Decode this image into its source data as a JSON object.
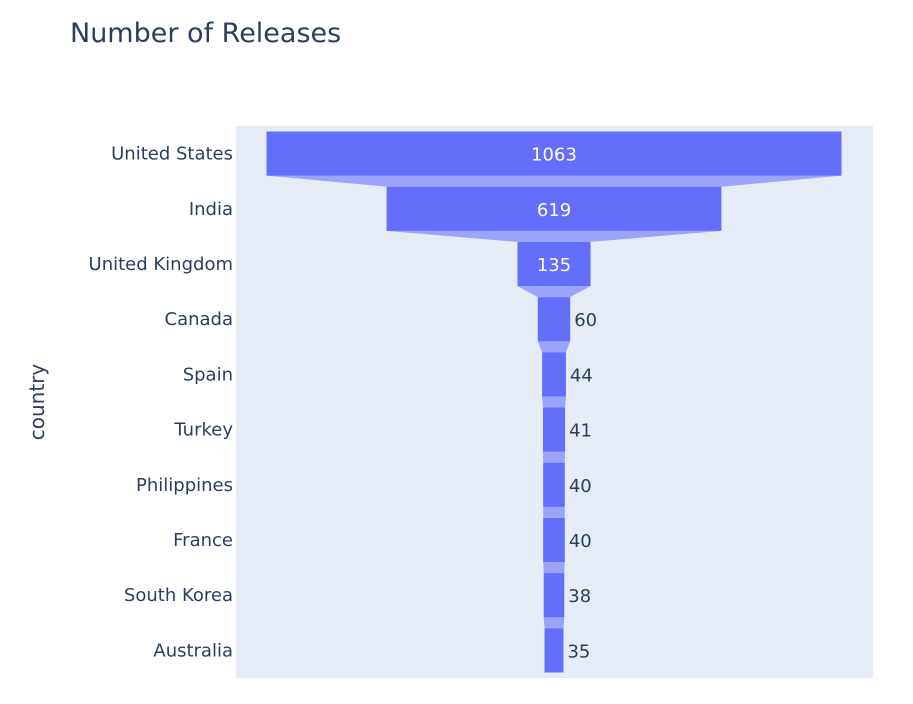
{
  "chart_data": {
    "type": "funnel",
    "title": "Number of Releases",
    "ylabel": "country",
    "xlabel": "",
    "categories": [
      "United States",
      "India",
      "United Kingdom",
      "Canada",
      "Spain",
      "Turkey",
      "Philippines",
      "France",
      "South Korea",
      "Australia"
    ],
    "values": [
      1063,
      619,
      135,
      60,
      44,
      41,
      40,
      40,
      38,
      35
    ],
    "colors": {
      "bar": "#636efa",
      "connector": "#9ca3fb",
      "plot_bg": "#e5ecf6",
      "text": "#2a3f5f"
    },
    "grid": false,
    "legend": "none"
  }
}
